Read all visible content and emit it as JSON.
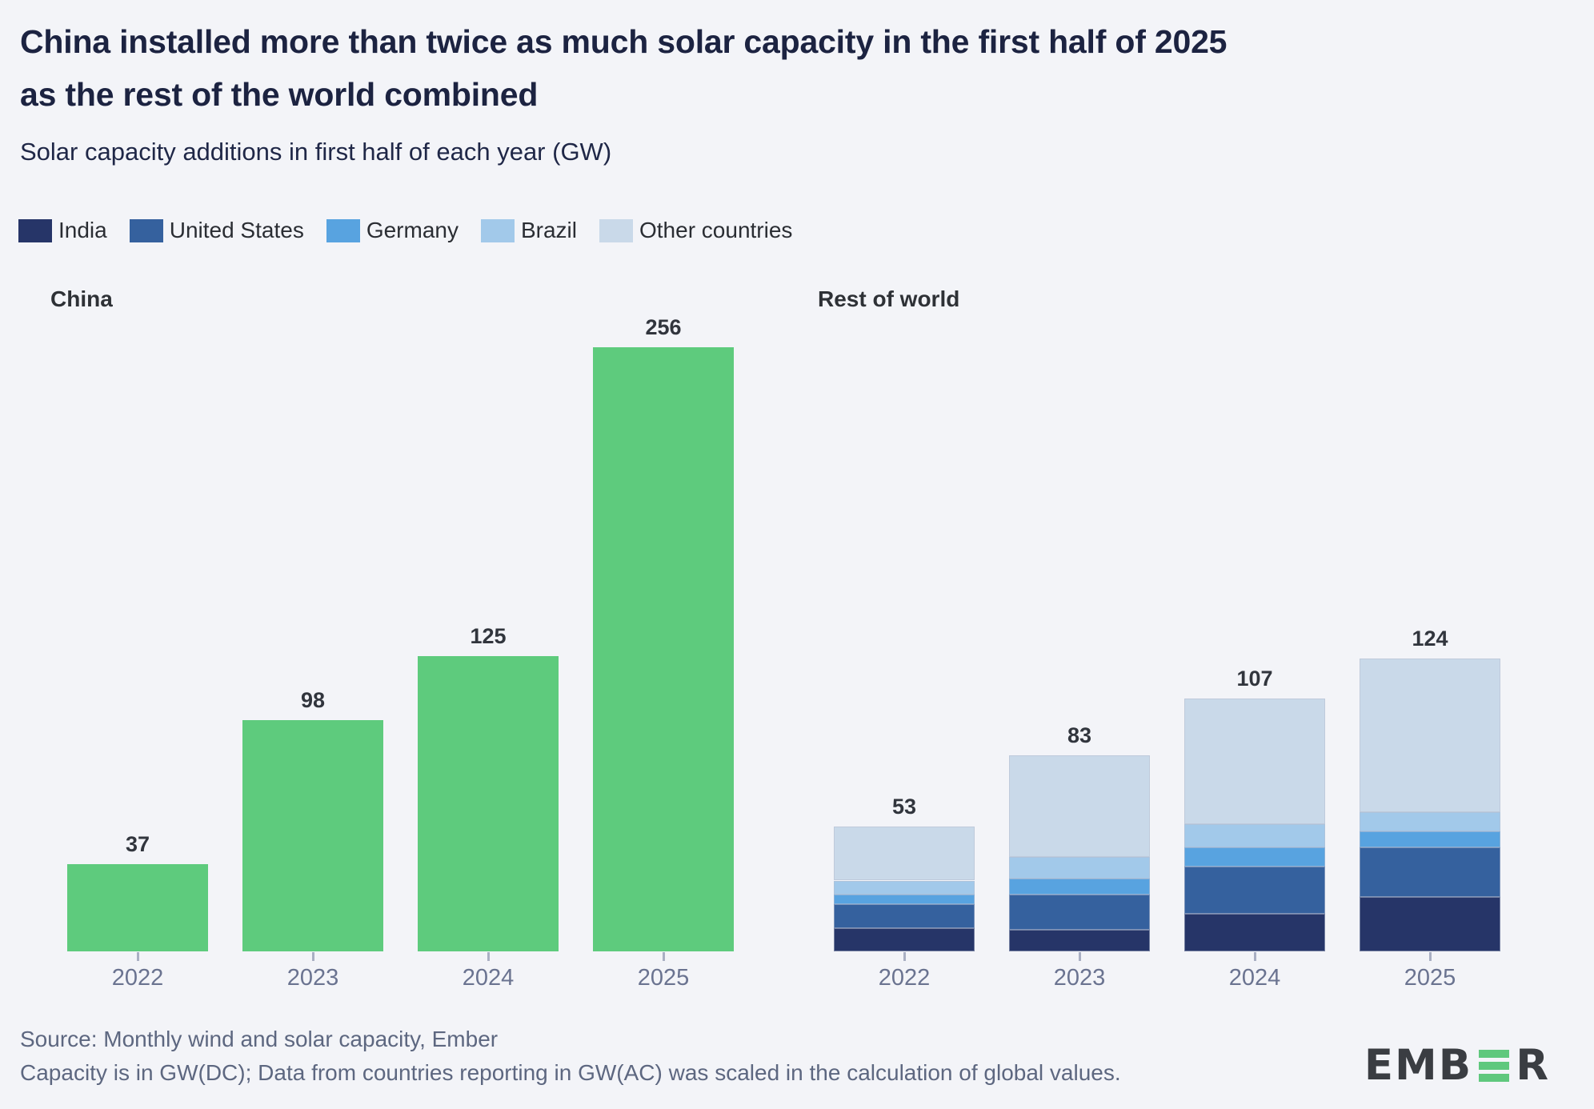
{
  "header": {
    "title": "China installed more than twice as much solar capacity in the first half of 2025 as the rest of the world combined",
    "subtitle": "Solar capacity additions in first half of each year (GW)"
  },
  "colors": {
    "background": "#f3f4f8",
    "china_bar": "#5ecb7d",
    "india": "#263568",
    "united_states": "#35619e",
    "germany": "#58a3e0",
    "brazil": "#a2c9ea",
    "other_countries": "#c9d9e9",
    "logo_dark": "#3a3d42",
    "logo_green": "#5fc87d"
  },
  "legend": {
    "items": [
      {
        "label": "India",
        "color": "#263568"
      },
      {
        "label": "United States",
        "color": "#35619e"
      },
      {
        "label": "Germany",
        "color": "#58a3e0"
      },
      {
        "label": "Brazil",
        "color": "#a2c9ea"
      },
      {
        "label": "Other countries",
        "color": "#c9d9e9"
      }
    ]
  },
  "chart_data": [
    {
      "type": "bar",
      "title": "China",
      "categories": [
        "2022",
        "2023",
        "2024",
        "2025"
      ],
      "values": [
        37,
        98,
        125,
        256
      ],
      "bar_color": "#5ecb7d",
      "unit": "GW",
      "ylim": [
        0,
        270
      ],
      "grid": false,
      "value_labels": true
    },
    {
      "type": "bar",
      "stacked": true,
      "title": "Rest of world",
      "categories": [
        "2022",
        "2023",
        "2024",
        "2025"
      ],
      "series": [
        {
          "name": "India",
          "color": "#263568",
          "values": [
            10,
            9,
            16,
            23
          ]
        },
        {
          "name": "United States",
          "color": "#35619e",
          "values": [
            10,
            15,
            20,
            21
          ]
        },
        {
          "name": "Germany",
          "color": "#58a3e0",
          "values": [
            4,
            7,
            8,
            7
          ]
        },
        {
          "name": "Brazil",
          "color": "#a2c9ea",
          "values": [
            6,
            9,
            10,
            8
          ]
        },
        {
          "name": "Other countries",
          "color": "#c9d9e9",
          "values": [
            23,
            43,
            53,
            65
          ]
        }
      ],
      "totals": [
        53,
        83,
        107,
        124
      ],
      "unit": "GW",
      "ylim": [
        0,
        270
      ],
      "grid": false,
      "value_labels": true
    }
  ],
  "footer": {
    "source_line1": "Source: Monthly wind and solar capacity, Ember",
    "source_line2": "Capacity is in GW(DC); Data from countries reporting in GW(AC) was scaled in the calculation of global values.",
    "logo_text_left": "EMB",
    "logo_text_right": "R"
  }
}
